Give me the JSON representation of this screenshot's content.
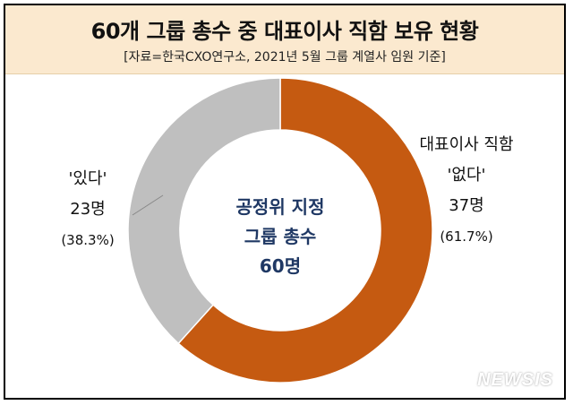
{
  "header": {
    "title": "60개 그룹 총수 중 대표이사 직함 보유 현황",
    "subtitle": "[자료=한국CXO연구소, 2021년 5월 그룹 계열사 임원 기준]"
  },
  "center_label": [
    "공정위 지정",
    "그룹 총수",
    "60명"
  ],
  "watermark": "NEWSIS",
  "colors": {
    "no_title": "#c55a11",
    "has_title": "#bfbfbf",
    "center_text": "#1f3864",
    "label_text": "#111111"
  },
  "chart_data": {
    "type": "pie",
    "donut": true,
    "total": 60,
    "slices": [
      {
        "label_lines": [
          "대표이사 직함",
          "'없다'"
        ],
        "count_label": "37명",
        "pct_label": "(61.7%)",
        "value": 37,
        "percent": 61.7,
        "color": "#c55a11"
      },
      {
        "label_lines": [
          "'있다'"
        ],
        "count_label": "23명",
        "pct_label": "(38.3%)",
        "value": 23,
        "percent": 38.3,
        "color": "#bfbfbf"
      }
    ],
    "start_angle": "12 o'clock",
    "direction": "clockwise"
  }
}
